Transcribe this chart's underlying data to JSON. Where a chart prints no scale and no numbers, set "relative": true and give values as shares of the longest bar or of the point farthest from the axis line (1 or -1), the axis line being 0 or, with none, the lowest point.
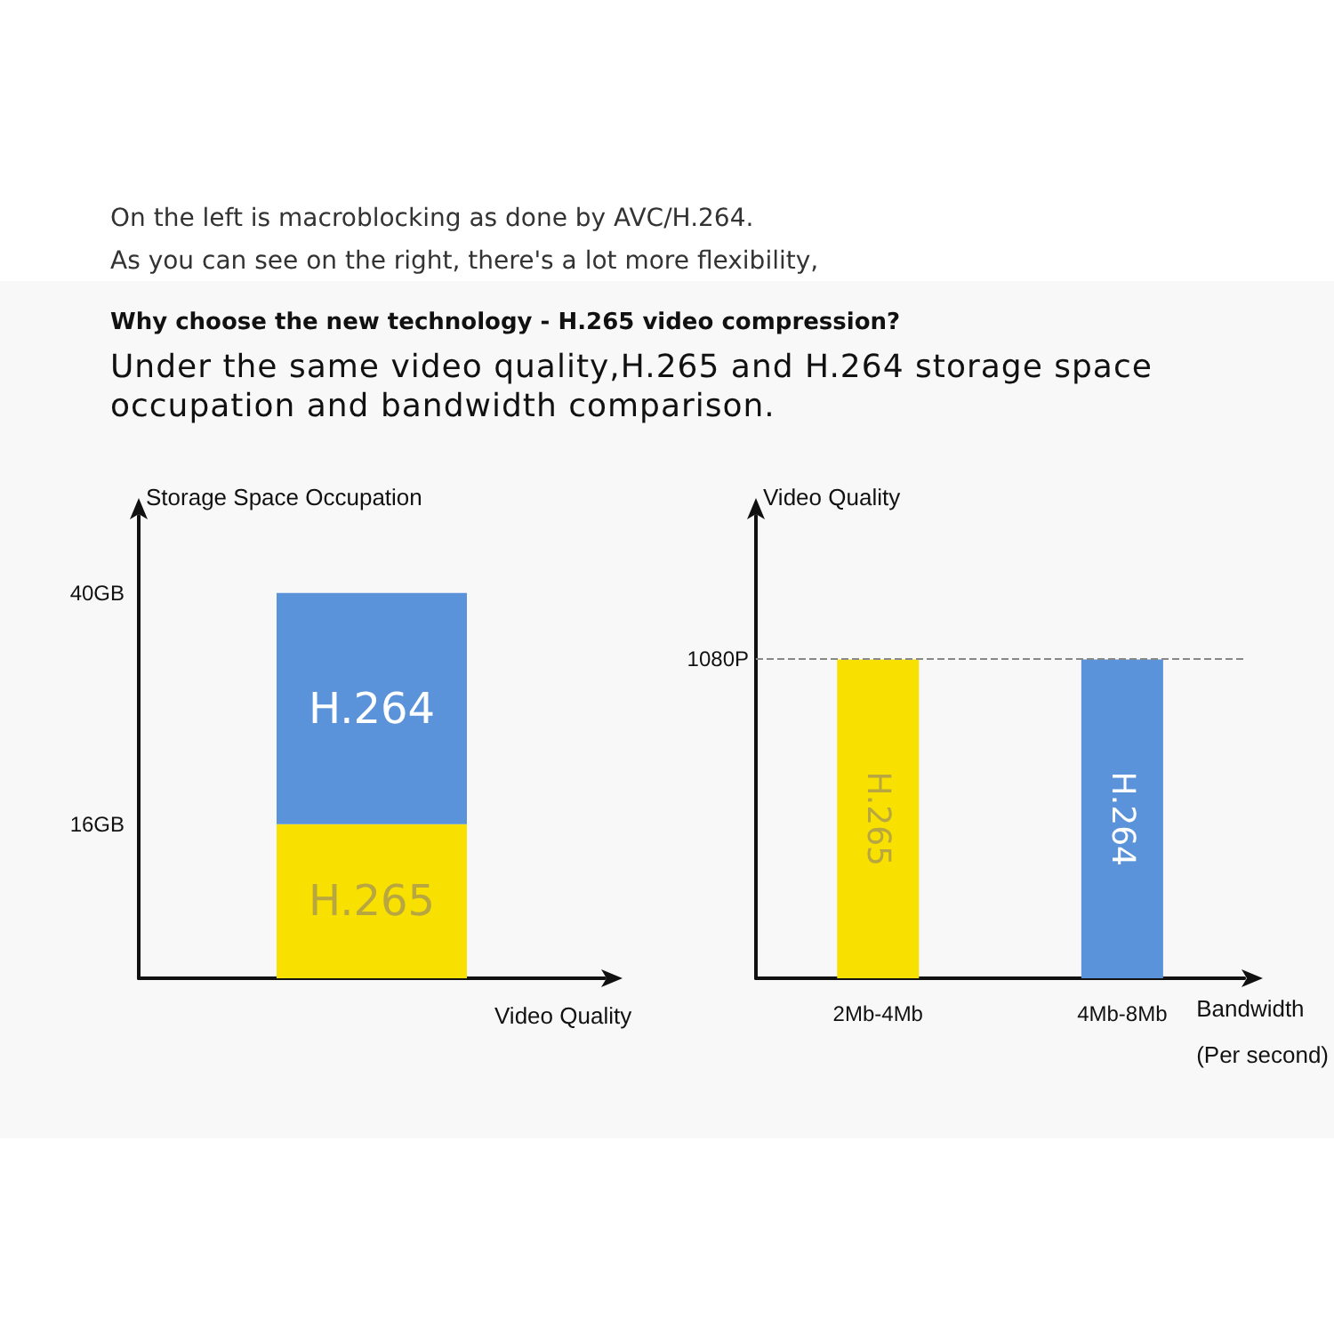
{
  "chart_data": [
    {
      "type": "bar",
      "title": "Why choose the new technology - H.265 video compression?",
      "subtitle": "Under the same video quality,H.265 and H.264 storage space occupation and bandwidth comparison.",
      "annotations": [
        "On the left is macroblocking as done by AVC/H.264.",
        "As you can see on the right, there's a lot more flexibility,"
      ],
      "categories": [
        null
      ],
      "stacked": true,
      "ylabel": "Storage Space Occupation",
      "xlabel": "Video Quality",
      "ylim": [
        0,
        48
      ],
      "yticks": [
        {
          "value": 16,
          "label": "16GB"
        },
        {
          "value": 40,
          "label": "40GB"
        }
      ],
      "series": [
        {
          "name": "H.265",
          "color": "#f8e000",
          "values": [
            16
          ]
        },
        {
          "name": "H.264",
          "color": "#5b93db",
          "values": [
            24
          ]
        }
      ]
    },
    {
      "type": "bar",
      "categories": [
        "2Mb-4Mb",
        "4Mb-8Mb"
      ],
      "stacked": true,
      "relative": true,
      "ylabel": "Video Quality",
      "xlabel": "Bandwidth\n(Per second)",
      "ref_lines": [
        {
          "axis": "y",
          "value": 1,
          "label": "1080P",
          "line_style": "dashed"
        }
      ],
      "series": [
        {
          "name": "H.265",
          "color": "#f8e000",
          "values": [
            1,
            null
          ]
        },
        {
          "name": "H.264",
          "color": "#5b93db",
          "values": [
            null,
            1
          ]
        }
      ]
    }
  ]
}
